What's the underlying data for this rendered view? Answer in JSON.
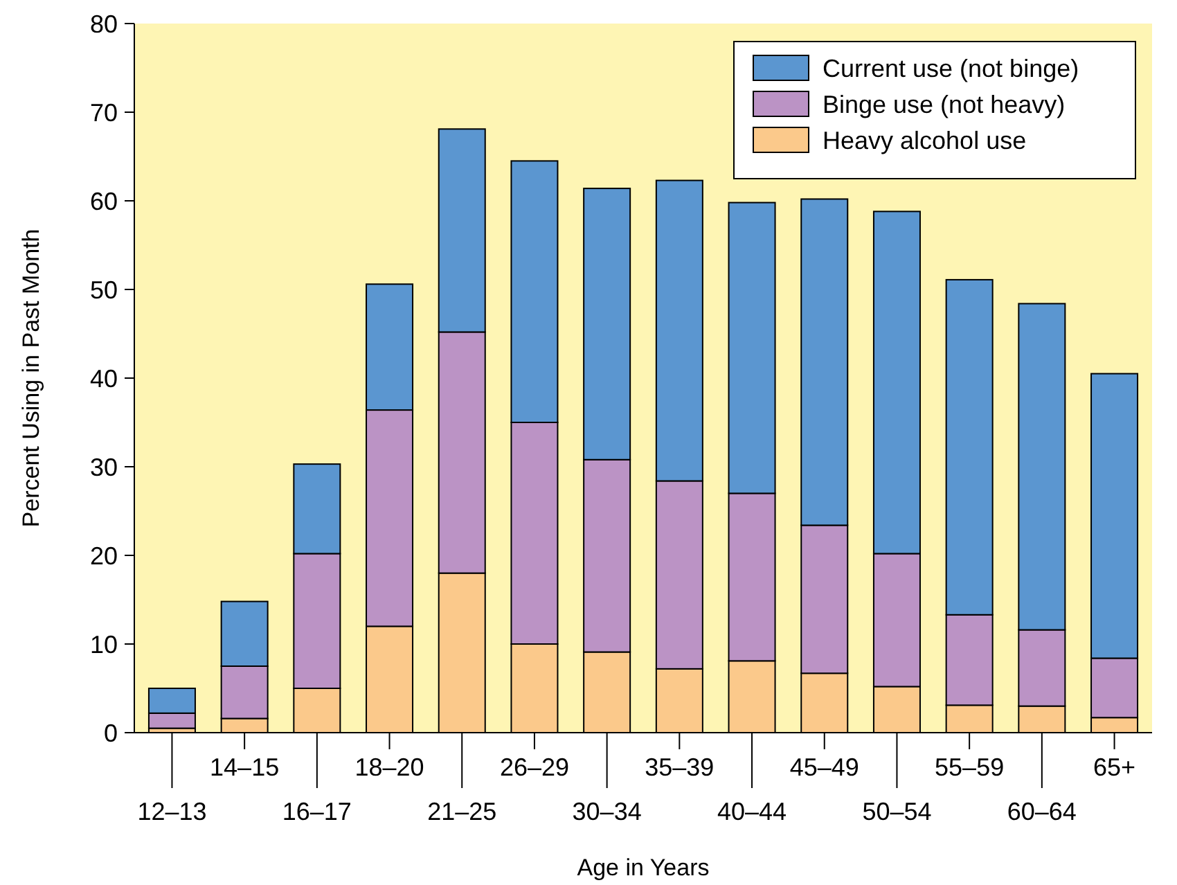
{
  "chart_data": {
    "type": "bar",
    "stacked": true,
    "xlabel": "Age in Years",
    "ylabel": "Percent Using in Past Month",
    "categories": [
      "12–13",
      "14–15",
      "16–17",
      "18–20",
      "21–25",
      "26–29",
      "30–34",
      "35–39",
      "40–44",
      "45–49",
      "50–54",
      "55–59",
      "60–64",
      "65+"
    ],
    "series": [
      {
        "name": "Heavy alcohol use",
        "color": "#fbc98b",
        "values": [
          0.5,
          1.6,
          5.0,
          12.0,
          18.0,
          10.0,
          9.1,
          7.2,
          8.1,
          6.7,
          5.2,
          3.1,
          3.0,
          1.7
        ]
      },
      {
        "name": "Binge use (not heavy)",
        "color": "#bb93c5",
        "values": [
          1.7,
          5.9,
          15.2,
          24.4,
          27.2,
          25.0,
          21.7,
          21.2,
          18.9,
          16.7,
          15.0,
          10.2,
          8.6,
          6.7
        ]
      },
      {
        "name": "Current use (not binge)",
        "color": "#5b96d0",
        "values": [
          2.8,
          7.3,
          10.1,
          14.2,
          22.9,
          29.5,
          30.6,
          33.9,
          32.8,
          36.8,
          38.6,
          37.8,
          36.8,
          32.1
        ]
      }
    ],
    "ylim": [
      0,
      80
    ],
    "yticks": [
      0,
      10,
      20,
      30,
      40,
      50,
      60,
      70,
      80
    ],
    "grid": false,
    "legend": "top right"
  }
}
